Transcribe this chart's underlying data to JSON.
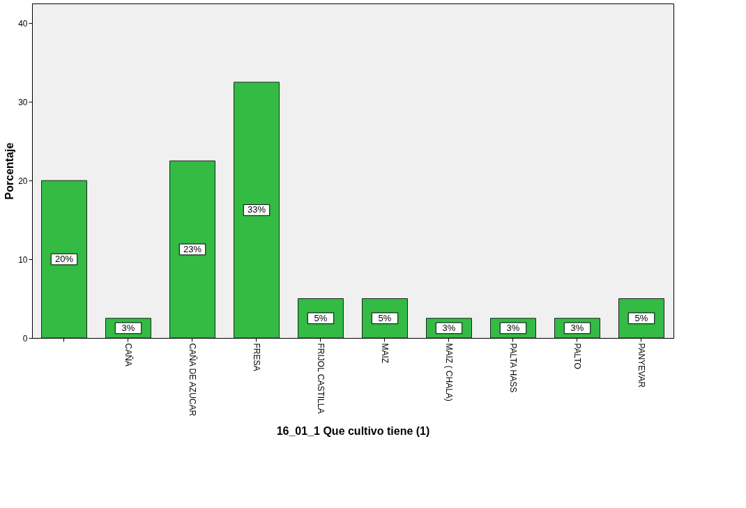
{
  "chart_data": {
    "type": "bar",
    "xlabel": "16_01_1 Que cultivo tiene (1)",
    "ylabel": "Porcentaje",
    "categories": [
      null,
      "CAÑA",
      "CAÑA DE AZUCAR",
      "FRESA",
      "FRIJOL CASTILLA",
      "MAIZ",
      "MAIZ ( CHALA)",
      "PALTA HASS",
      "PALTO",
      "PANYEVAR"
    ],
    "values": [
      20,
      2.5,
      22.5,
      32.5,
      5,
      5,
      2.5,
      2.5,
      2.5,
      5
    ],
    "value_labels": [
      "20%",
      "3%",
      "23%",
      "33%",
      "5%",
      "5%",
      "3%",
      "3%",
      "3%",
      "5%"
    ],
    "color": "#33bb44",
    "ylim": [
      0,
      42.5
    ],
    "yticks": [
      0,
      10,
      20,
      30,
      40
    ],
    "grid": false
  }
}
